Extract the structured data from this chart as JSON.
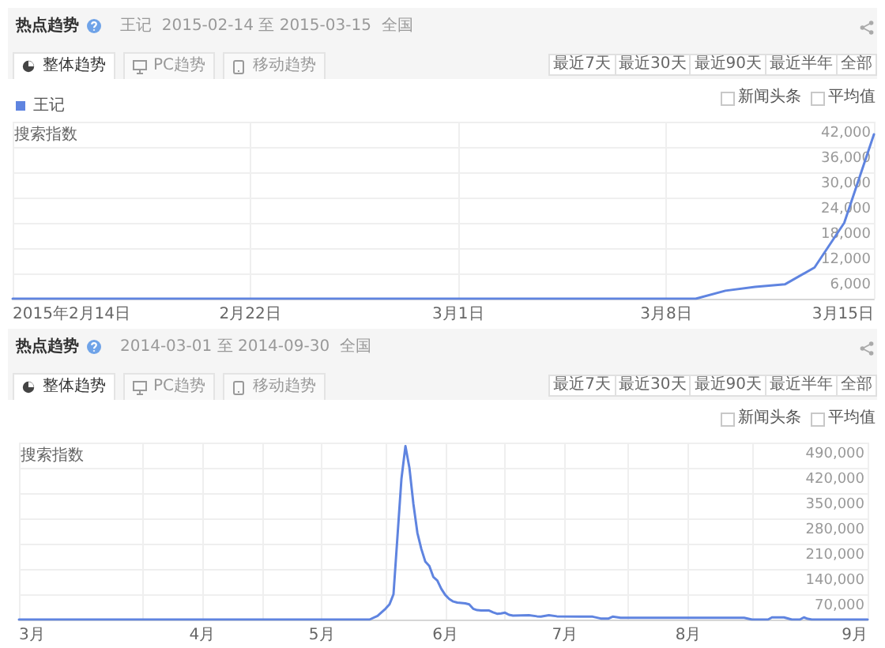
{
  "chart_data": [
    {
      "type": "line",
      "title": "热点趋势",
      "subtitle": "王记  2015-02-14 至 2015-03-15  全国",
      "ylabel": "搜索指数",
      "annotations": [
        "整体趋势",
        "PC趋势",
        "移动趋势",
        "最近7天",
        "最近30天",
        "最近90天",
        "最近半年",
        "全部",
        "新闻头条",
        "平均值"
      ],
      "x": [
        "2015-02-14",
        "2015-03-09",
        "2015-03-10",
        "2015-03-11",
        "2015-03-12",
        "2015-03-13",
        "2015-03-14",
        "2015-03-15"
      ],
      "series": [
        {
          "name": "王记",
          "color": "#5f84e0",
          "values": [
            0,
            0,
            1900,
            2800,
            3400,
            7400,
            18000,
            39000
          ]
        }
      ],
      "xlim": [
        "2015-02-14",
        "2015-03-15"
      ],
      "xticks": [
        {
          "value": "2015-02-14",
          "label": "2015年2月14日"
        },
        {
          "value": "2015-02-22",
          "label": "2月22日"
        },
        {
          "value": "2015-03-01",
          "label": "3月1日"
        },
        {
          "value": "2015-03-08",
          "label": "3月8日"
        },
        {
          "value": "2015-03-15",
          "label": "3月15日"
        }
      ],
      "ylim": [
        0,
        42000
      ],
      "yticks": [
        {
          "value": 6000,
          "label": "6,000"
        },
        {
          "value": 12000,
          "label": "12,000"
        },
        {
          "value": 18000,
          "label": "18,000"
        },
        {
          "value": 24000,
          "label": "24,000"
        },
        {
          "value": 30000,
          "label": "30,000"
        },
        {
          "value": 36000,
          "label": "36,000"
        },
        {
          "value": 42000,
          "label": "42,000"
        }
      ],
      "grid": true,
      "legend": "top left",
      "marker": "none",
      "line_style": "solid"
    },
    {
      "type": "line",
      "title": "热点趋势",
      "subtitle": "2014-03-01 至 2014-09-30  全国",
      "ylabel": "搜索指数",
      "annotations": [
        "整体趋势",
        "PC趋势",
        "移动趋势",
        "最近7天",
        "最近30天",
        "最近90天",
        "最近半年",
        "全部",
        "新闻头条",
        "平均值"
      ],
      "x": [
        "2014-03-01",
        "2014-05-28",
        "2014-05-30",
        "2014-06-01",
        "2014-06-02",
        "2014-06-03",
        "2014-06-04",
        "2014-06-05",
        "2014-06-06",
        "2014-06-07",
        "2014-06-08",
        "2014-06-09",
        "2014-06-10",
        "2014-06-11",
        "2014-06-12",
        "2014-06-13",
        "2014-06-14",
        "2014-06-15",
        "2014-06-16",
        "2014-06-17",
        "2014-06-18",
        "2014-06-19",
        "2014-06-20",
        "2014-06-21",
        "2014-06-22",
        "2014-06-23",
        "2014-06-24",
        "2014-06-25",
        "2014-06-27",
        "2014-06-28",
        "2014-06-29",
        "2014-06-30",
        "2014-07-01",
        "2014-07-02",
        "2014-07-03",
        "2014-07-07",
        "2014-07-09",
        "2014-07-10",
        "2014-07-12",
        "2014-07-14",
        "2014-07-20",
        "2014-07-23",
        "2014-07-25",
        "2014-07-27",
        "2014-07-28",
        "2014-07-30",
        "2014-08-30",
        "2014-09-01",
        "2014-09-05",
        "2014-09-06",
        "2014-09-09",
        "2014-09-11",
        "2014-09-13",
        "2014-09-14",
        "2014-09-15",
        "2014-09-16",
        "2014-09-30"
      ],
      "series": [
        {
          "color": "#5f84e0",
          "values": [
            0,
            0,
            10000,
            30000,
            42000,
            70000,
            230000,
            390000,
            480000,
            420000,
            320000,
            240000,
            195000,
            160000,
            148000,
            118000,
            108000,
            85000,
            68000,
            57000,
            50000,
            47000,
            46000,
            45000,
            42000,
            30000,
            26000,
            25000,
            25000,
            20000,
            16000,
            17000,
            19000,
            13000,
            11000,
            12000,
            9000,
            8000,
            12000,
            9000,
            8000,
            8000,
            3000,
            3000,
            8000,
            5000,
            5000,
            0,
            0,
            6000,
            6000,
            0,
            0,
            6000,
            2000,
            0,
            0
          ]
        }
      ],
      "xlim": [
        "2014-03-01",
        "2014-09-30"
      ],
      "xticks": [
        {
          "value": "2014-03-01",
          "label": "3月"
        },
        {
          "value": "2014-04-01",
          "label": null
        },
        {
          "value": "2014-04-16",
          "label": "4月"
        },
        {
          "value": "2014-05-01",
          "label": null
        },
        {
          "value": "2014-05-16",
          "label": "5月"
        },
        {
          "value": "2014-06-01",
          "label": null
        },
        {
          "value": "2014-06-16",
          "label": "6月"
        },
        {
          "value": "2014-07-01",
          "label": null
        },
        {
          "value": "2014-07-16",
          "label": "7月"
        },
        {
          "value": "2014-08-01",
          "label": null
        },
        {
          "value": "2014-08-16",
          "label": "8月"
        },
        {
          "value": "2014-09-01",
          "label": null
        },
        {
          "value": "2014-09-30",
          "label": "9月"
        }
      ],
      "ylim": [
        0,
        490000
      ],
      "yticks": [
        {
          "value": 70000,
          "label": "70,000"
        },
        {
          "value": 140000,
          "label": "140,000"
        },
        {
          "value": 210000,
          "label": "210,000"
        },
        {
          "value": 280000,
          "label": "280,000"
        },
        {
          "value": 350000,
          "label": "350,000"
        },
        {
          "value": 420000,
          "label": "420,000"
        },
        {
          "value": 490000,
          "label": "490,000"
        }
      ],
      "grid": true,
      "marker": "none",
      "line_style": "solid"
    }
  ]
}
